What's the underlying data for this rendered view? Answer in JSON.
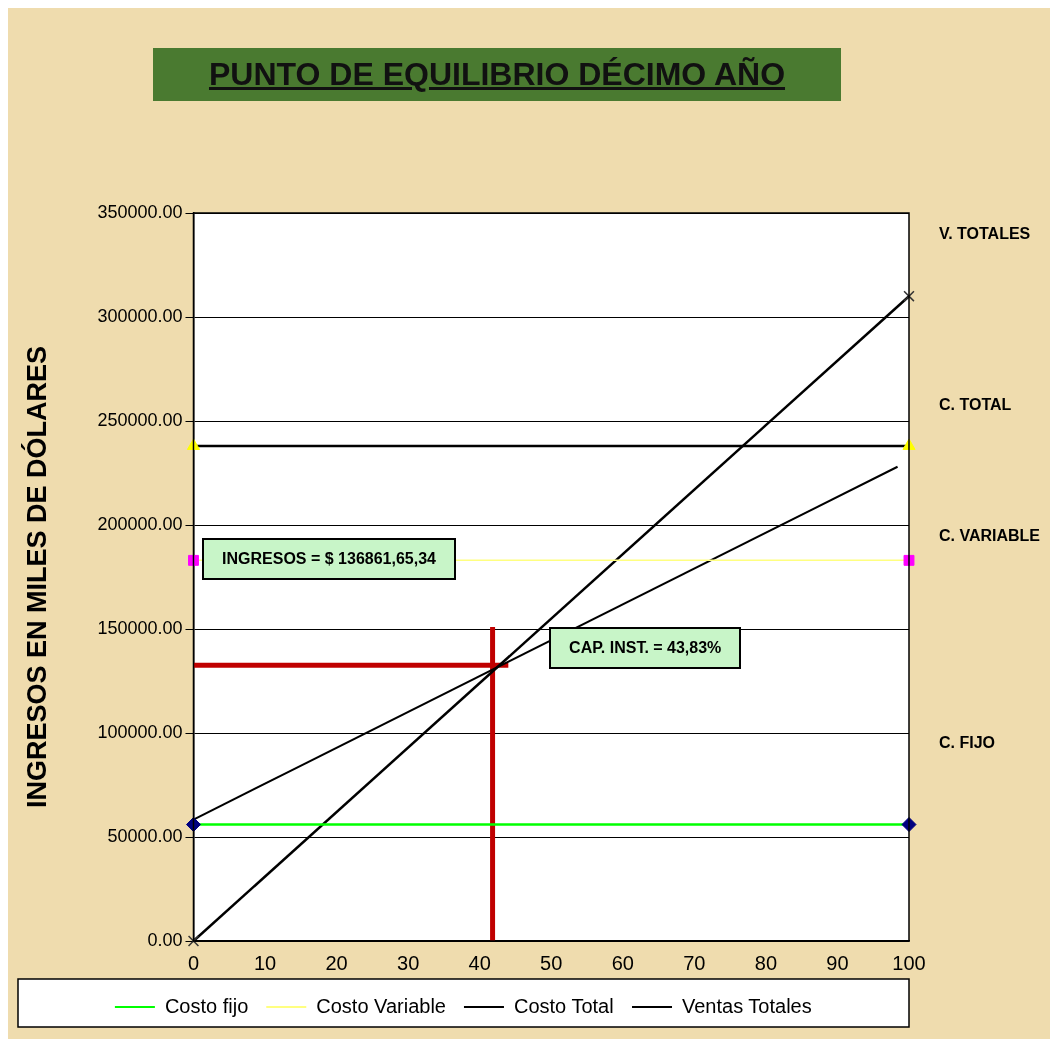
{
  "chart_data": {
    "type": "line",
    "title": "PUNTO DE EQUILIBRIO  DÉCIMO AÑO",
    "ylabel": "INGRESOS EN MILES DE DÓLARES",
    "xlim": [
      0,
      100
    ],
    "xticks": [
      0,
      10,
      20,
      30,
      40,
      50,
      60,
      70,
      80,
      90,
      100
    ],
    "ylim": [
      0,
      350000
    ],
    "yticks": [
      {
        "value": 0,
        "label": "0.00"
      },
      {
        "value": 50000,
        "label": "50000.00"
      },
      {
        "value": 100000,
        "label": "100000.00"
      },
      {
        "value": 150000,
        "label": "150000.00"
      },
      {
        "value": 200000,
        "label": "200000.00"
      },
      {
        "value": 250000,
        "label": "250000.00"
      },
      {
        "value": 300000,
        "label": "300000.00"
      },
      {
        "value": 350000,
        "label": "350000.00"
      }
    ],
    "grid": "y",
    "legend": "bottom",
    "series": [
      {
        "name": "Costo fijo",
        "color": "#00ff00",
        "colors": [
          "#000080",
          "#000080"
        ],
        "marker": "diamond",
        "x": [
          0,
          100
        ],
        "values": [
          56000,
          56000
        ]
      },
      {
        "name": "Costo Variable",
        "color": "#ffff80",
        "colors": [
          "#ff00ff",
          "#ff00ff"
        ],
        "marker": "square",
        "x": [
          0,
          100
        ],
        "values": [
          183000,
          183000
        ]
      },
      {
        "name": "Costo Total",
        "color": "#000000",
        "colors": [
          "#ffff00",
          "#ffff00"
        ],
        "marker": "triangle",
        "x": [
          0,
          100
        ],
        "values": [
          238000,
          238000
        ]
      },
      {
        "name": "Ventas Totales",
        "color": "#000000",
        "colors": [
          "#333333",
          "#333333"
        ],
        "marker": "cross",
        "x": [
          0,
          100
        ],
        "values": [
          0,
          310000
        ]
      },
      {
        "color": "#000000",
        "marker": "none",
        "x": [
          0,
          98.4
        ],
        "values": [
          58400,
          228000
        ]
      },
      {
        "color": "#c00000",
        "marker": "none",
        "x": [
          41.8,
          41.8
        ],
        "values": [
          0,
          151000
        ]
      },
      {
        "color": "#c00000",
        "marker": "none",
        "x": [
          0,
          44
        ],
        "values": [
          132600,
          132600
        ]
      }
    ],
    "annotations": [
      "INGRESOS  =  $ 136861,65,34",
      "CAP. INST. = 43,83%",
      "V. TOTALES",
      "C. TOTAL",
      "C. VARIABLE",
      "C. FIJO"
    ]
  }
}
